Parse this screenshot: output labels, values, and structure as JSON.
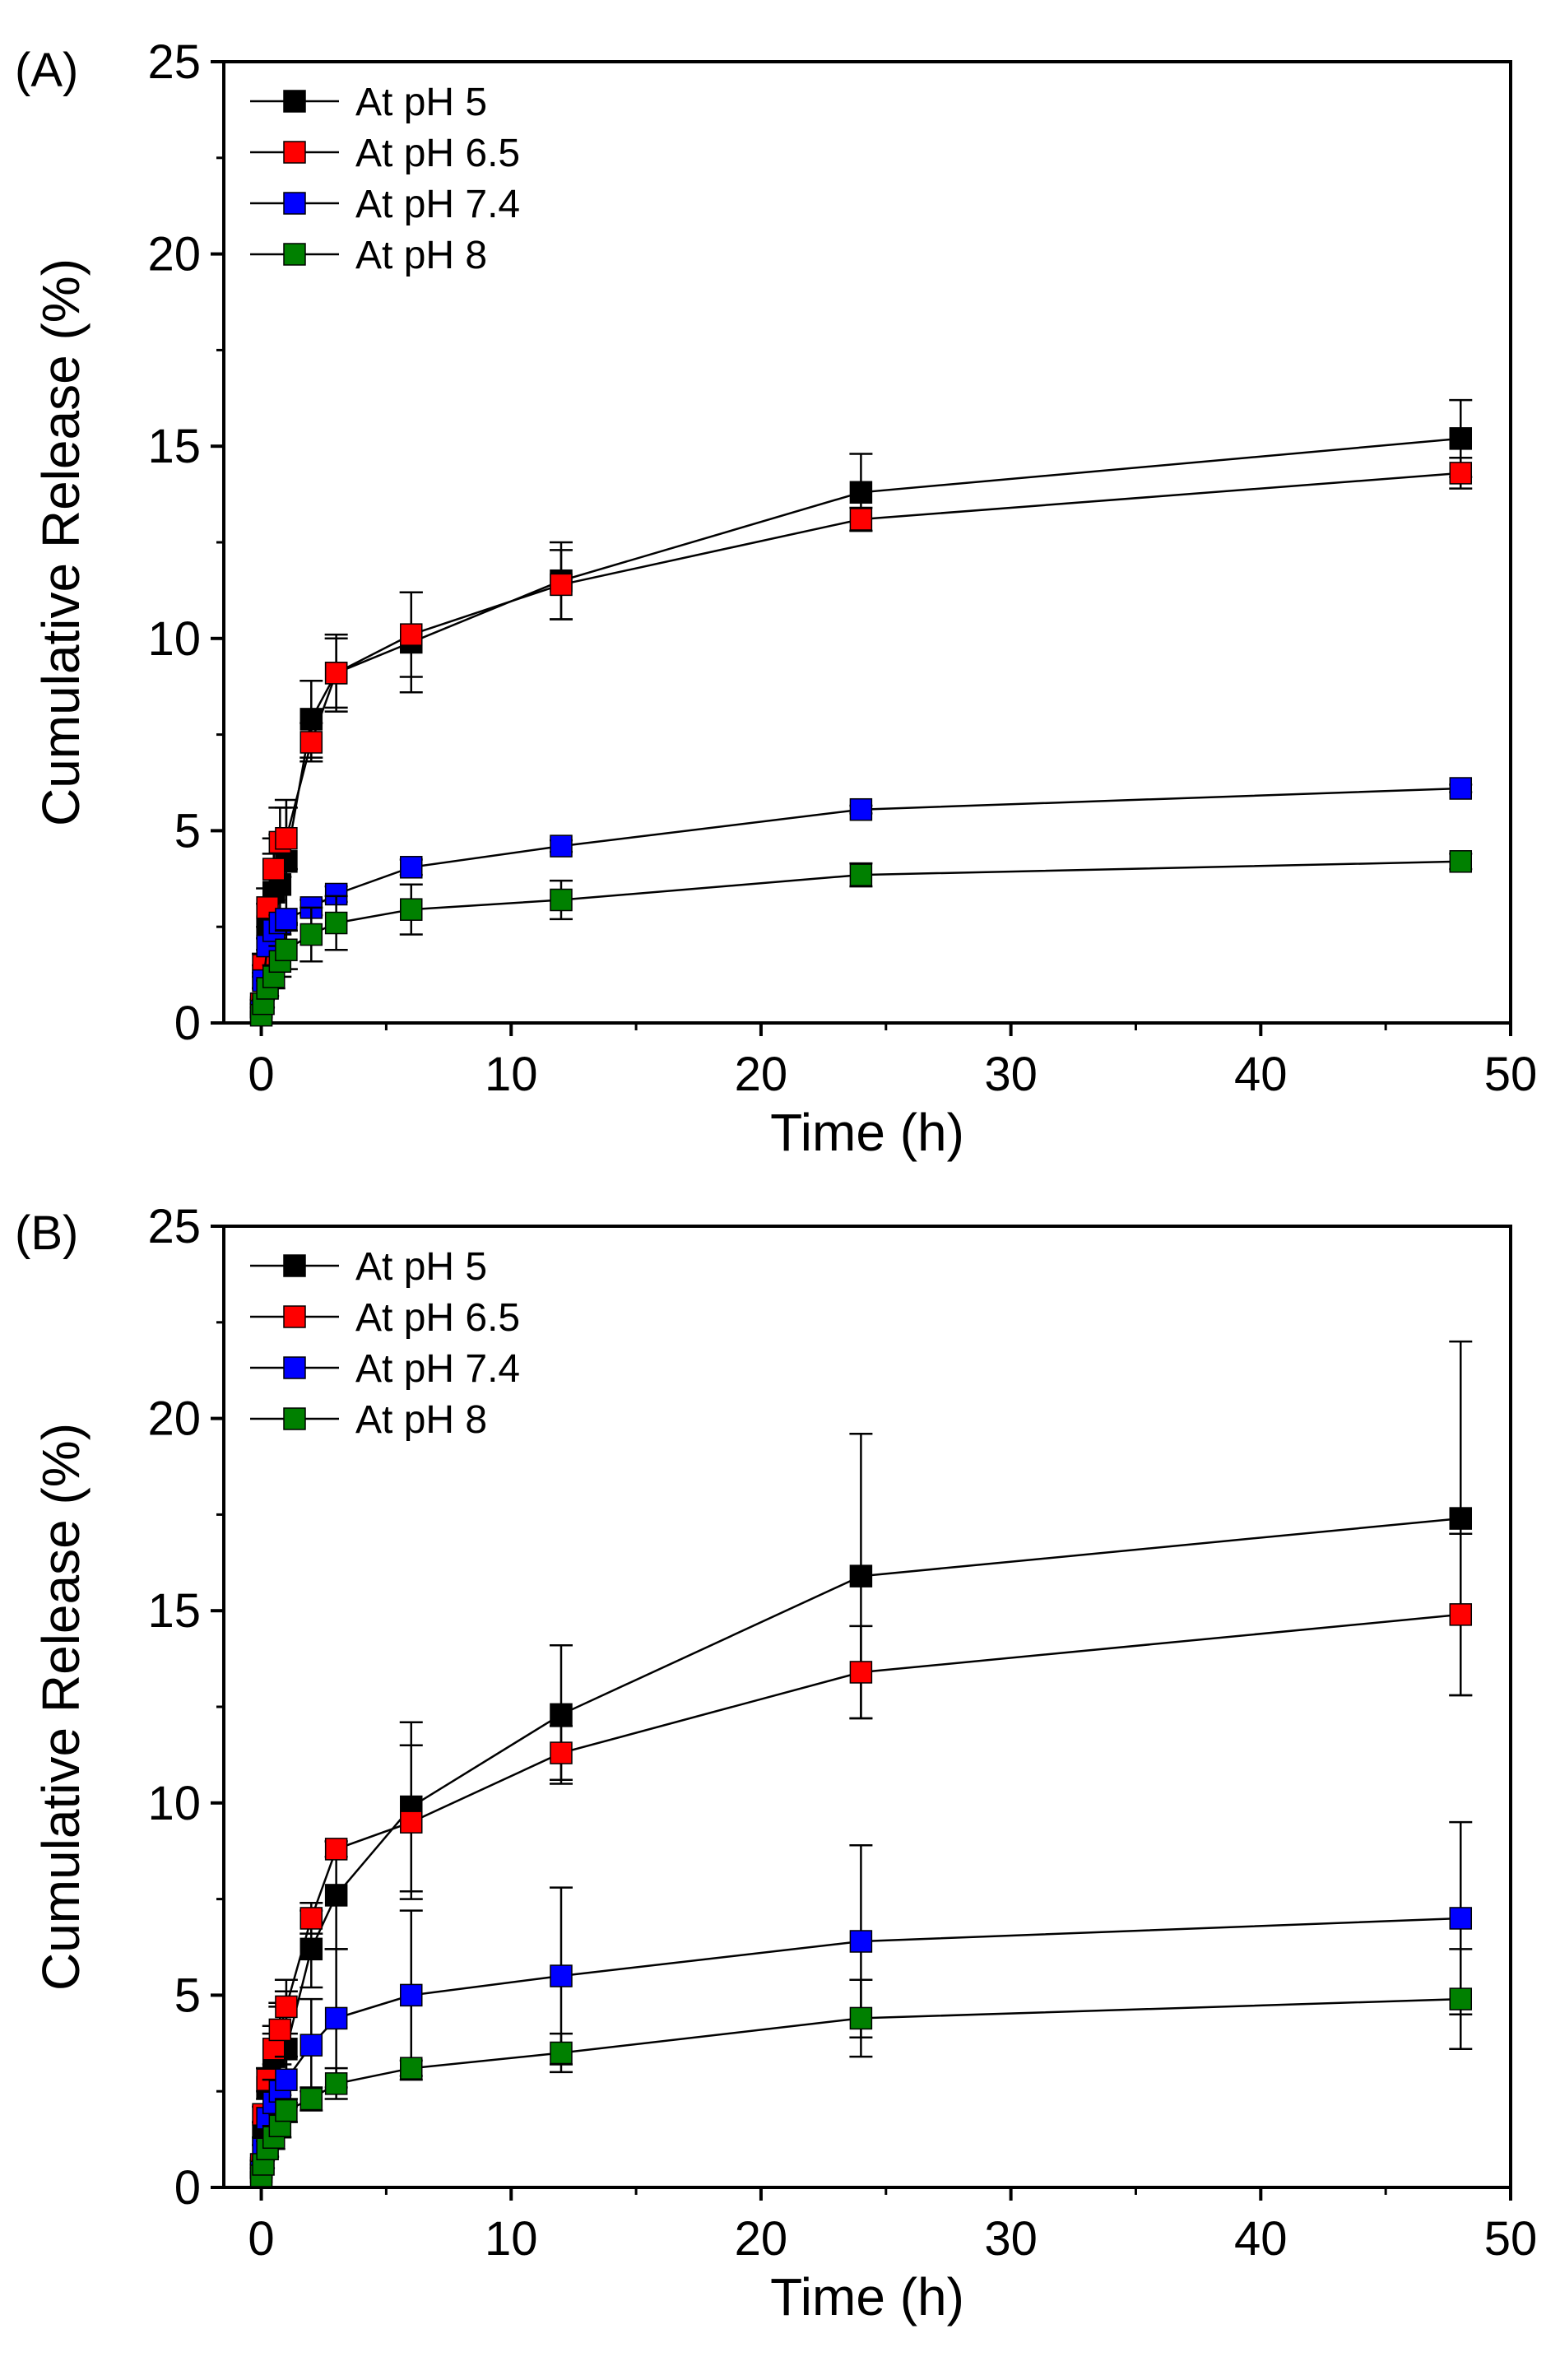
{
  "chart_data": [
    {
      "panel": "(A)",
      "type": "line",
      "xlabel": "Time (h)",
      "ylabel": "Cumulative Release (%)",
      "xlim": [
        -1.5,
        50
      ],
      "ylim": [
        0,
        25
      ],
      "xticks": [
        0,
        10,
        20,
        30,
        40,
        50
      ],
      "yticks": [
        0,
        5,
        10,
        15,
        20,
        25
      ],
      "legend_position": "top-left",
      "series": [
        {
          "name": "At pH 5",
          "color": "#000000",
          "x": [
            0,
            0.083,
            0.25,
            0.5,
            0.75,
            1,
            2,
            3,
            6,
            12,
            24,
            48
          ],
          "y": [
            0.4,
            1.2,
            2.5,
            3.4,
            3.6,
            4.2,
            7.9,
            9.1,
            9.9,
            11.5,
            13.8,
            15.2
          ],
          "err": [
            0.1,
            0.3,
            0.6,
            1.0,
            1.3,
            1.6,
            1.0,
            1.0,
            1.3,
            1.0,
            1.0,
            1.0
          ]
        },
        {
          "name": "At pH 6.5",
          "color": "#ff0000",
          "x": [
            0,
            0.083,
            0.25,
            0.5,
            0.75,
            1,
            2,
            3,
            6,
            12,
            24,
            48
          ],
          "y": [
            0.5,
            1.5,
            3.0,
            4.0,
            4.7,
            4.8,
            7.3,
            9.1,
            10.1,
            11.4,
            13.1,
            14.3
          ],
          "err": [
            0.1,
            0.3,
            0.5,
            0.8,
            0.9,
            0.8,
            0.5,
            0.9,
            1.1,
            0.9,
            0.3,
            0.4
          ]
        },
        {
          "name": "At pH 7.4",
          "color": "#0000ff",
          "x": [
            0,
            0.083,
            0.25,
            0.5,
            0.75,
            1,
            2,
            3,
            6,
            12,
            24,
            48
          ],
          "y": [
            0.3,
            1.1,
            2.0,
            2.4,
            2.6,
            2.7,
            3.0,
            3.35,
            4.05,
            4.6,
            5.55,
            6.1
          ],
          "err": [
            0.1,
            0.2,
            0.2,
            0.2,
            0.2,
            0.15,
            0.2,
            0.2,
            0.2,
            0.15,
            0.1,
            0.1
          ]
        },
        {
          "name": "At pH 8",
          "color": "#008000",
          "x": [
            0,
            0.083,
            0.25,
            0.5,
            0.75,
            1,
            2,
            3,
            6,
            12,
            24,
            48
          ],
          "y": [
            0.2,
            0.5,
            0.9,
            1.2,
            1.6,
            1.9,
            2.3,
            2.6,
            2.95,
            3.2,
            3.85,
            4.2
          ],
          "err": [
            0.05,
            0.1,
            0.2,
            0.3,
            0.4,
            0.5,
            0.7,
            0.7,
            0.65,
            0.5,
            0.3,
            0.2
          ]
        }
      ]
    },
    {
      "panel": "(B)",
      "type": "line",
      "xlabel": "Time (h)",
      "ylabel": "Cumulative Release (%)",
      "xlim": [
        -1.5,
        50
      ],
      "ylim": [
        0,
        25
      ],
      "xticks": [
        0,
        10,
        20,
        30,
        40,
        50
      ],
      "yticks": [
        0,
        5,
        10,
        15,
        20,
        25
      ],
      "legend_position": "top-left",
      "series": [
        {
          "name": "At pH 5",
          "color": "#000000",
          "x": [
            0,
            0.083,
            0.25,
            0.5,
            0.75,
            1,
            2,
            3,
            6,
            12,
            24,
            48
          ],
          "y": [
            0.5,
            1.4,
            2.6,
            3.4,
            3.6,
            3.6,
            6.2,
            7.6,
            9.9,
            12.3,
            15.9,
            17.4
          ],
          "err": [
            0.1,
            0.3,
            0.5,
            0.8,
            1.2,
            1.5,
            1.0,
            1.4,
            2.2,
            1.8,
            3.7,
            4.6
          ]
        },
        {
          "name": "At pH 6.5",
          "color": "#ff0000",
          "x": [
            0,
            0.083,
            0.25,
            0.5,
            0.75,
            1,
            2,
            3,
            6,
            12,
            24,
            48
          ],
          "y": [
            0.6,
            1.9,
            2.8,
            3.6,
            4.1,
            4.7,
            7.0,
            8.8,
            9.5,
            11.3,
            13.4,
            14.9
          ],
          "err": [
            0.1,
            0.2,
            0.3,
            0.4,
            0.6,
            0.7,
            0.4,
            0.2,
            2.0,
            0.7,
            1.2,
            2.1
          ]
        },
        {
          "name": "At pH 7.4",
          "color": "#0000ff",
          "x": [
            0,
            0.083,
            0.25,
            0.5,
            0.75,
            1,
            2,
            3,
            6,
            12,
            24,
            48
          ],
          "y": [
            0.4,
            1.0,
            1.8,
            2.2,
            2.5,
            2.8,
            3.7,
            4.4,
            5.0,
            5.5,
            6.4,
            7.0
          ],
          "err": [
            0.1,
            0.3,
            0.5,
            0.6,
            0.7,
            0.6,
            1.2,
            1.8,
            2.2,
            2.3,
            2.5,
            2.5
          ]
        },
        {
          "name": "At pH 8",
          "color": "#008000",
          "x": [
            0,
            0.083,
            0.25,
            0.5,
            0.75,
            1,
            2,
            3,
            6,
            12,
            24,
            48
          ],
          "y": [
            0.3,
            0.6,
            1.0,
            1.3,
            1.6,
            2.0,
            2.3,
            2.7,
            3.1,
            3.5,
            4.4,
            4.9
          ],
          "err": [
            0.05,
            0.1,
            0.2,
            0.3,
            0.3,
            0.3,
            0.3,
            0.4,
            0.2,
            0.5,
            1.0,
            1.3
          ]
        }
      ]
    }
  ]
}
